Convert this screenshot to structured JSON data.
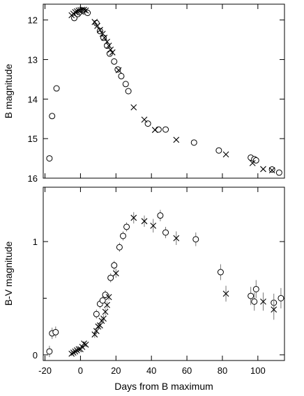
{
  "chart_data": [
    {
      "type": "scatter",
      "title": "",
      "xlabel": "",
      "ylabel": "B magnitude",
      "xlim": [
        -21,
        115
      ],
      "ylim": [
        11.6,
        16.0
      ],
      "y_inverted": true,
      "y_ticks": [
        12,
        13,
        14,
        15,
        16
      ],
      "x_ticks": [
        -20,
        0,
        20,
        40,
        60,
        80,
        100
      ],
      "x_tick_labels": [],
      "grid": false,
      "series": [
        {
          "marker": "circle",
          "points": [
            [
              -17.5,
              15.5
            ],
            [
              -16,
              14.43
            ],
            [
              -13.5,
              13.73
            ],
            [
              -3.5,
              11.95
            ],
            [
              -1.5,
              11.85
            ],
            [
              -0.5,
              11.8
            ],
            [
              2,
              11.78
            ],
            [
              4,
              11.82
            ],
            [
              9,
              12.08
            ],
            [
              11,
              12.28
            ],
            [
              13,
              12.45
            ],
            [
              15,
              12.65
            ],
            [
              16.5,
              12.85
            ],
            [
              19,
              13.05
            ],
            [
              21,
              13.25
            ],
            [
              23,
              13.42
            ],
            [
              25.5,
              13.62
            ],
            [
              27,
              13.8
            ],
            [
              38,
              14.62
            ],
            [
              44,
              14.77
            ],
            [
              48,
              14.77
            ],
            [
              64,
              15.1
            ],
            [
              78,
              15.3
            ],
            [
              96,
              15.48
            ],
            [
              98,
              15.52
            ],
            [
              99,
              15.55
            ],
            [
              108,
              15.78
            ],
            [
              112,
              15.86
            ]
          ]
        },
        {
          "marker": "cross",
          "points": [
            [
              -5,
              11.88
            ],
            [
              -4,
              11.84
            ],
            [
              -3,
              11.8
            ],
            [
              -2,
              11.78
            ],
            [
              -1,
              11.76
            ],
            [
              0,
              11.75
            ],
            [
              1,
              11.74
            ],
            [
              2,
              11.74
            ],
            [
              3,
              11.76
            ],
            [
              8,
              12.05
            ],
            [
              9.5,
              12.15
            ],
            [
              11,
              12.25
            ],
            [
              12.5,
              12.35
            ],
            [
              13.5,
              12.45
            ],
            [
              15,
              12.55
            ],
            [
              16,
              12.65
            ],
            [
              17,
              12.75
            ],
            [
              18,
              12.82
            ],
            [
              21.5,
              13.27
            ],
            [
              30,
              14.21
            ],
            [
              36,
              14.52
            ],
            [
              42,
              14.78
            ],
            [
              54,
              15.03
            ],
            [
              82,
              15.4
            ],
            [
              97,
              15.62
            ],
            [
              103,
              15.77
            ],
            [
              108,
              15.8
            ]
          ]
        }
      ]
    },
    {
      "type": "scatter",
      "title": "",
      "xlabel": "Days from B maximum",
      "ylabel": "B-V magnitude",
      "xlim": [
        -21,
        115
      ],
      "ylim": [
        -0.05,
        1.48
      ],
      "y_ticks": [
        0,
        1
      ],
      "y_minor_step": 0.5,
      "x_ticks": [
        -20,
        0,
        20,
        40,
        60,
        80,
        100
      ],
      "x_tick_labels": [
        "-20",
        "0",
        "20",
        "40",
        "60",
        "80",
        "100"
      ],
      "grid": false,
      "series": [
        {
          "marker": "circle",
          "points": [
            [
              -17.5,
              0.03,
              0.05
            ],
            [
              -16,
              0.19,
              0.05
            ],
            [
              -14,
              0.2,
              0.05
            ],
            [
              9,
              0.36,
              0.04
            ],
            [
              11,
              0.45,
              0.04
            ],
            [
              12.5,
              0.48,
              0.04
            ],
            [
              14,
              0.53,
              0.04
            ],
            [
              17,
              0.68,
              0.04
            ],
            [
              19,
              0.79,
              0.04
            ],
            [
              22,
              0.95,
              0.04
            ],
            [
              24,
              1.05,
              0.04
            ],
            [
              26,
              1.13,
              0.04
            ],
            [
              45,
              1.23,
              0.05
            ],
            [
              48,
              1.08,
              0.05
            ],
            [
              65,
              1.02,
              0.06
            ],
            [
              79,
              0.73,
              0.07
            ],
            [
              96,
              0.52,
              0.08
            ],
            [
              98,
              0.47,
              0.08
            ],
            [
              99,
              0.58,
              0.08
            ],
            [
              109,
              0.46,
              0.08
            ],
            [
              113,
              0.5,
              0.09
            ]
          ]
        },
        {
          "marker": "cross",
          "points": [
            [
              -5,
              0.01,
              0.02
            ],
            [
              -4,
              0.02,
              0.02
            ],
            [
              -3,
              0.03,
              0.02
            ],
            [
              -2,
              0.04,
              0.02
            ],
            [
              -1,
              0.05,
              0.02
            ],
            [
              0,
              0.05,
              0.02
            ],
            [
              1,
              0.07,
              0.02
            ],
            [
              2,
              0.1,
              0.02
            ],
            [
              3,
              0.09,
              0.02
            ],
            [
              8,
              0.18,
              0.03
            ],
            [
              9,
              0.21,
              0.03
            ],
            [
              10,
              0.25,
              0.03
            ],
            [
              11,
              0.26,
              0.03
            ],
            [
              12,
              0.3,
              0.03
            ],
            [
              13,
              0.32,
              0.03
            ],
            [
              14,
              0.38,
              0.03
            ],
            [
              15,
              0.44,
              0.03
            ],
            [
              16,
              0.51,
              0.03
            ],
            [
              20,
              0.72,
              0.04
            ],
            [
              30,
              1.21,
              0.05
            ],
            [
              36,
              1.18,
              0.05
            ],
            [
              41,
              1.14,
              0.06
            ],
            [
              54,
              1.03,
              0.06
            ],
            [
              82,
              0.54,
              0.07
            ],
            [
              103,
              0.47,
              0.08
            ],
            [
              109,
              0.4,
              0.09
            ]
          ]
        }
      ]
    }
  ]
}
